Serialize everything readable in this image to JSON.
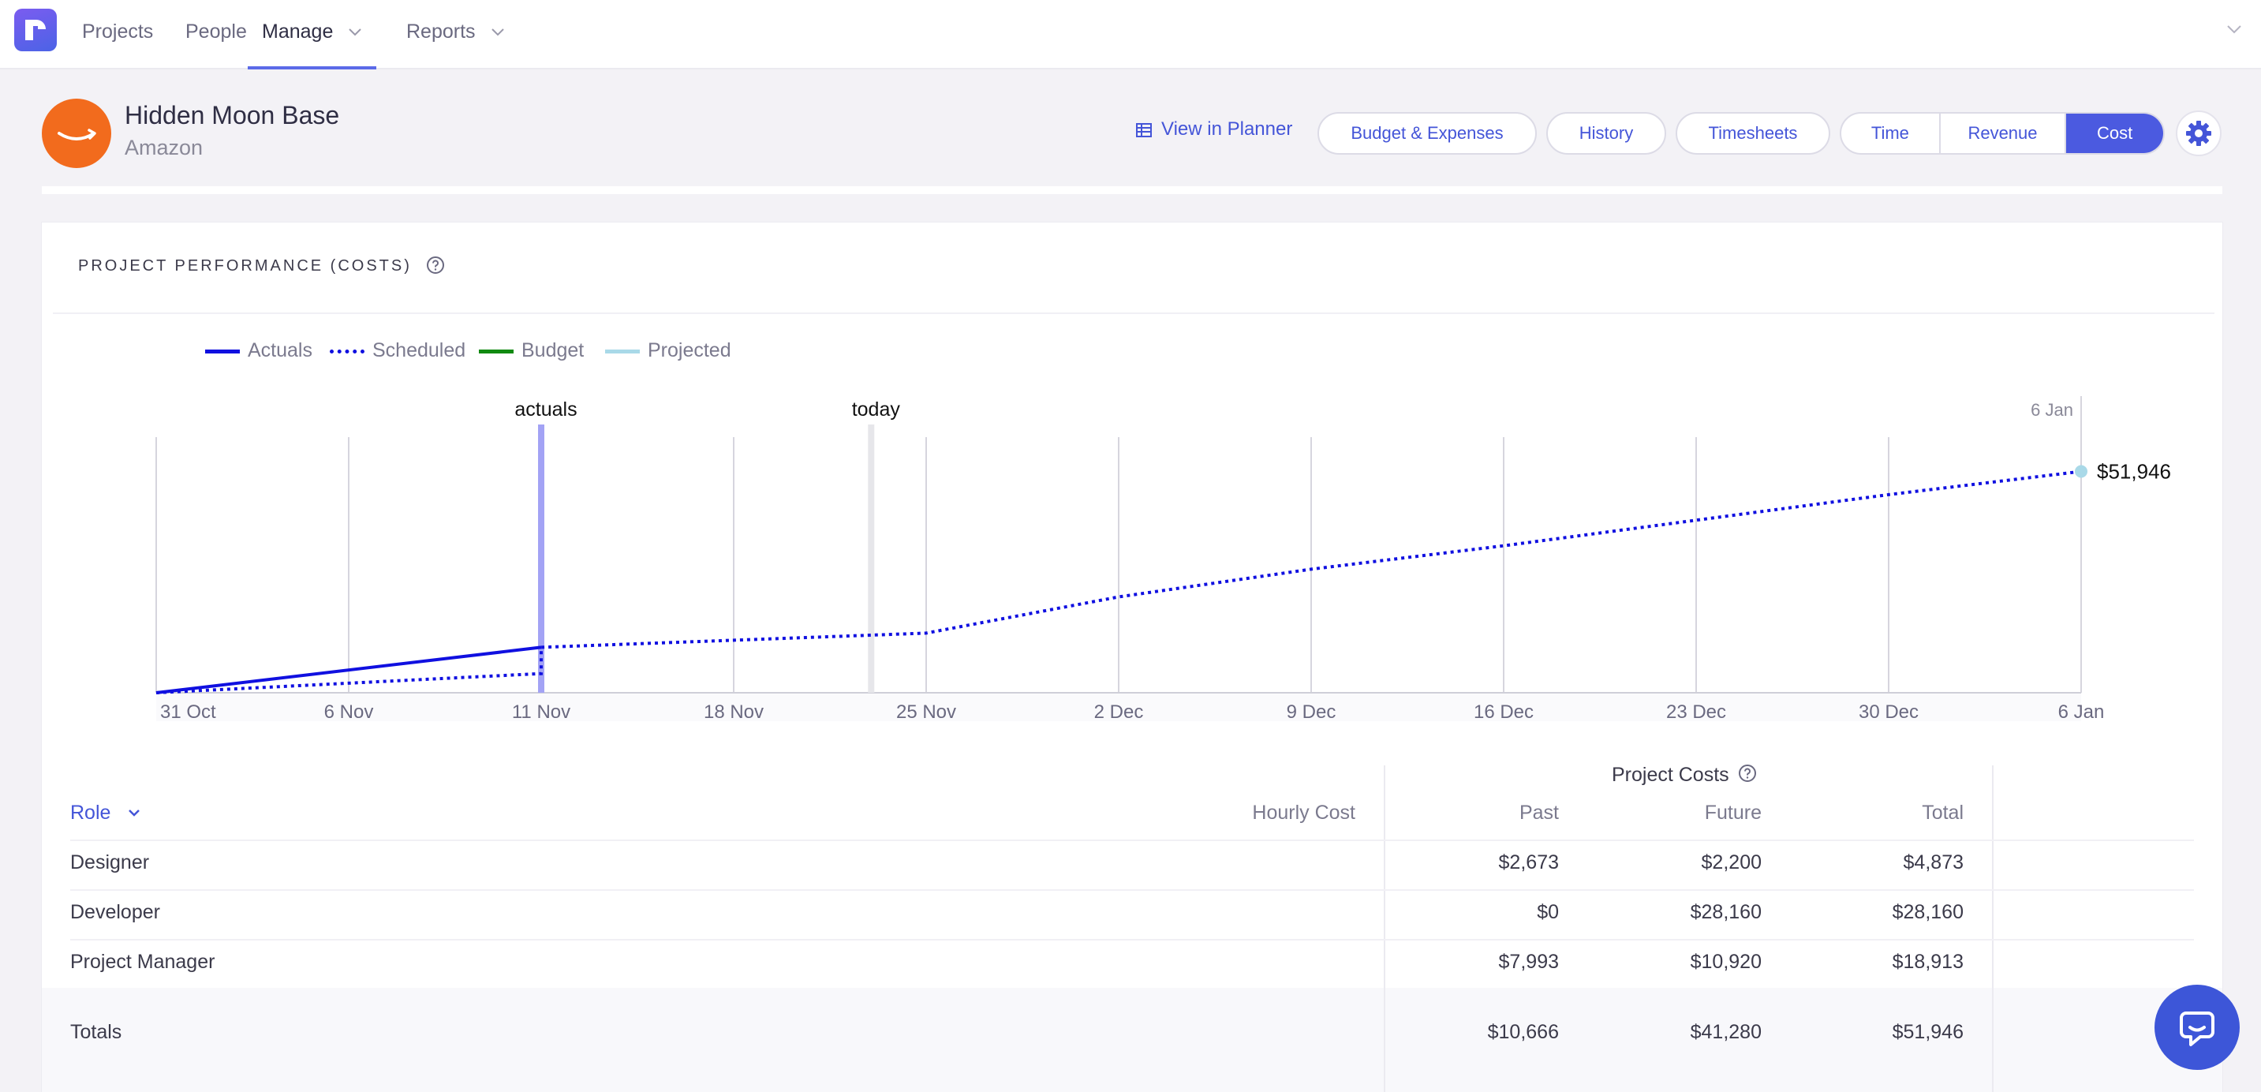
{
  "nav": {
    "items": [
      "Projects",
      "People",
      "Manage",
      "Reports"
    ],
    "active": "Manage",
    "icons": {
      "logo": "runn-logo-icon",
      "dropdown": "chevron-down-icon"
    }
  },
  "project": {
    "name": "Hidden Moon Base",
    "client": "Amazon",
    "avatar_color": "#f26b1d",
    "avatar_icon": "amazon-smile-icon"
  },
  "actions": {
    "view_in_planner": "View in Planner",
    "pills": [
      "Budget & Expenses",
      "History",
      "Timesheets"
    ],
    "segments": [
      "Time",
      "Revenue",
      "Cost"
    ],
    "active_segment": "Cost",
    "settings_icon": "gear-icon"
  },
  "performance": {
    "title": "PROJECT PERFORMANCE (COSTS)",
    "help_icon": "question-circle-icon"
  },
  "chart_data": {
    "type": "line",
    "x_labels": [
      "31 Oct",
      "6 Nov",
      "11 Nov",
      "18 Nov",
      "25 Nov",
      "2 Dec",
      "9 Dec",
      "16 Dec",
      "23 Dec",
      "30 Dec",
      "6 Jan"
    ],
    "series": [
      {
        "name": "Actuals",
        "color": "#1010e0",
        "style": "solid",
        "points": [
          [
            "31 Oct",
            0
          ],
          [
            "11 Nov",
            10666
          ]
        ]
      },
      {
        "name": "Scheduled",
        "color": "#1010e0",
        "style": "dotted",
        "points": [
          [
            "31 Oct",
            0
          ],
          [
            "11 Nov",
            4500
          ],
          [
            "11 Nov",
            10666
          ],
          [
            "25 Nov",
            14000
          ],
          [
            "2 Dec",
            22500
          ],
          [
            "9 Dec",
            29000
          ],
          [
            "16 Dec",
            34500
          ],
          [
            "23 Dec",
            40500
          ],
          [
            "30 Dec",
            46500
          ],
          [
            "6 Jan",
            51946
          ]
        ]
      },
      {
        "name": "Budget",
        "color": "#118a11",
        "style": "solid",
        "points": []
      },
      {
        "name": "Projected",
        "color": "#a9d9e8",
        "style": "solid",
        "points": []
      }
    ],
    "markers": [
      {
        "label": "actuals",
        "x": "11 Nov",
        "color": "#a3a3f5"
      },
      {
        "label": "today",
        "x": "23 Nov",
        "color": "#e6e6ea"
      }
    ],
    "end_label": {
      "date": "6 Jan",
      "value": 51946,
      "text": "$51,946"
    },
    "ylim": [
      0,
      60000
    ],
    "grid": true
  },
  "table": {
    "group_header": "Project Costs",
    "role_header": "Role",
    "columns": [
      "Hourly Cost",
      "Past",
      "Future",
      "Total"
    ],
    "rows": [
      {
        "role": "Designer",
        "hourly": "",
        "past": "$2,673",
        "future": "$2,200",
        "total": "$4,873"
      },
      {
        "role": "Developer",
        "hourly": "",
        "past": "$0",
        "future": "$28,160",
        "total": "$28,160"
      },
      {
        "role": "Project Manager",
        "hourly": "",
        "past": "$7,993",
        "future": "$10,920",
        "total": "$18,913"
      }
    ],
    "totals": {
      "label": "Totals",
      "past": "$10,666",
      "future": "$41,280",
      "total": "$51,946"
    }
  },
  "support": {
    "chat_icon": "chat-support-icon"
  }
}
